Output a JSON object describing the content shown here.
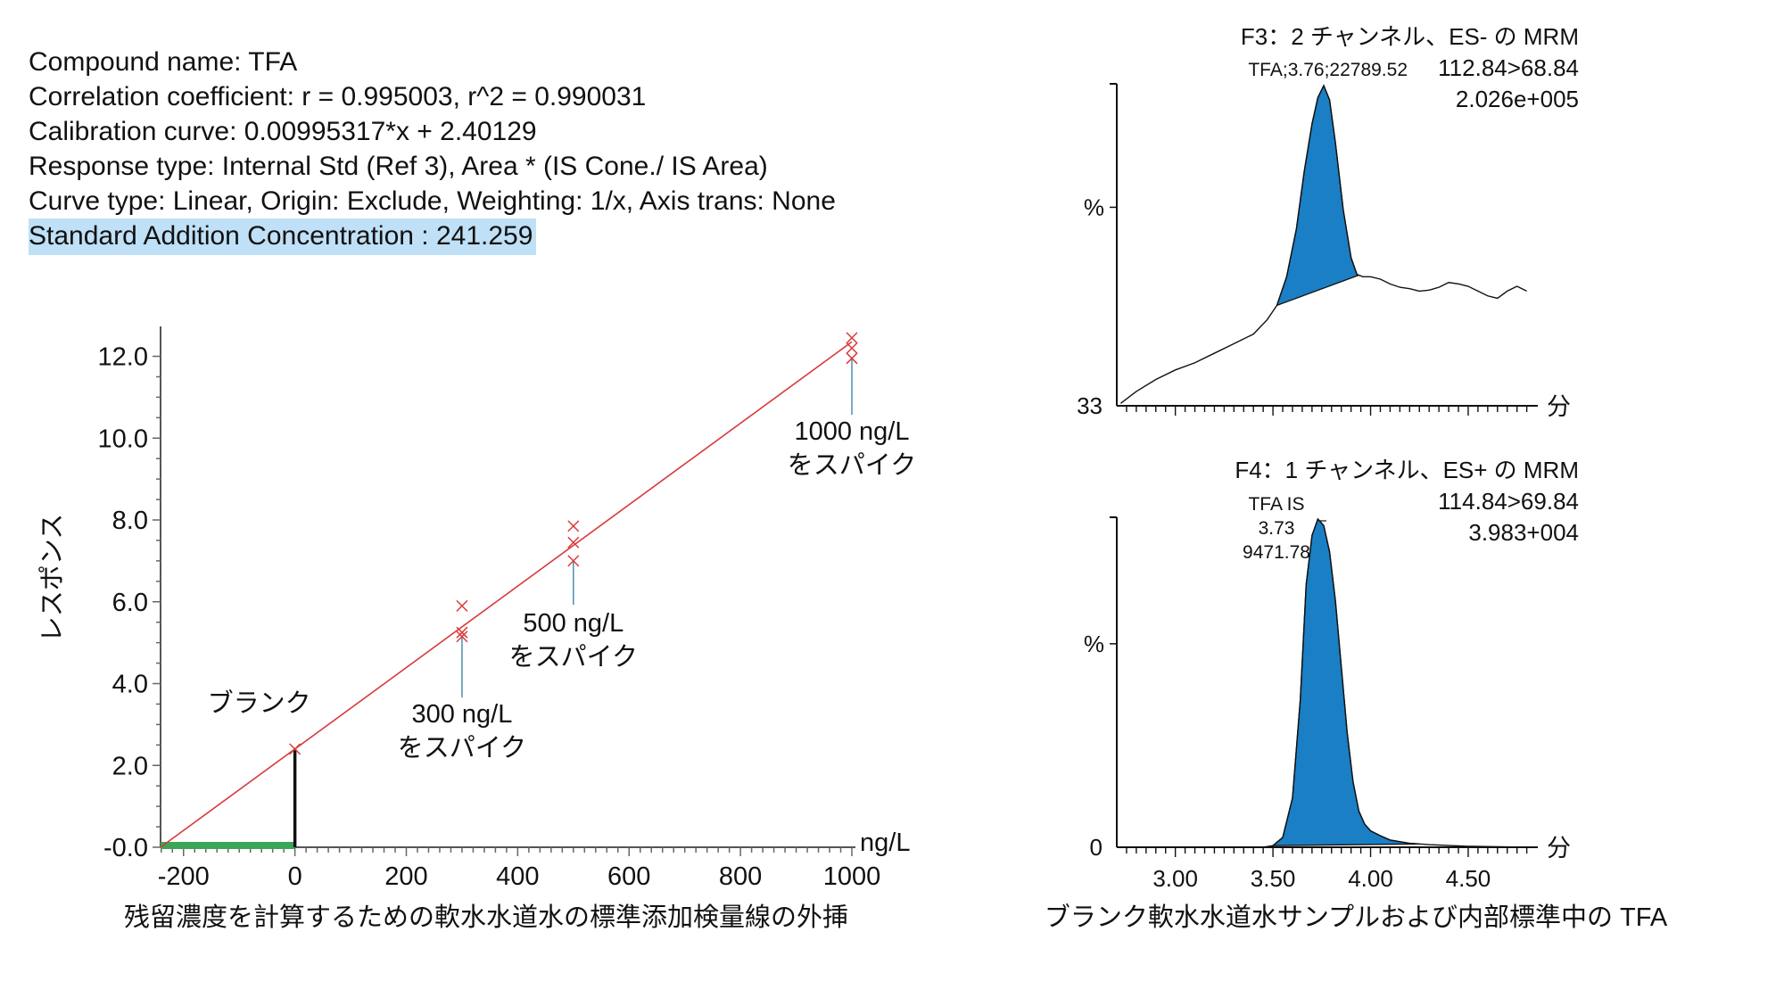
{
  "info": {
    "compound": "Compound name: TFA",
    "correlation": "Correlation coefficient: r = 0.995003, r^2 = 0.990031",
    "calibration": "Calibration curve: 0.00995317*x + 2.40129",
    "response_type": "Response type: Internal Std (Ref 3), Area * (IS Cone./ IS Area)",
    "curve_type": "Curve type: Linear, Origin: Exclude, Weighting: 1/x, Axis trans: None",
    "std_addition": "Standard Addition Concentration : 241.259"
  },
  "colors": {
    "fit_line": "#d93a3a",
    "points": "#d93a3a",
    "extrapolation": "#3aa657",
    "peak_fill": "#1a7fc4",
    "spike_line": "#4a8fb0"
  },
  "chart_data": [
    {
      "type": "scatter",
      "title": "残留濃度を計算するための軟水水道水の標準添加検量線の外挿",
      "xlabel": "ng/L",
      "ylabel": "レスポンス",
      "xlim": [
        -241.259,
        1000
      ],
      "ylim": [
        0,
        12.6
      ],
      "x_ticks": [
        "-200",
        "0",
        "200",
        "400",
        "600",
        "800",
        "1000"
      ],
      "y_ticks": [
        "-0.0",
        "2.0",
        "4.0",
        "6.0",
        "8.0",
        "10.0",
        "12.0"
      ],
      "fit": {
        "slope": 0.00995317,
        "intercept": 2.40129
      },
      "points": [
        {
          "x": 0,
          "y": 2.4
        },
        {
          "x": 300,
          "y": 5.9
        },
        {
          "x": 300,
          "y": 5.25
        },
        {
          "x": 300,
          "y": 5.15
        },
        {
          "x": 500,
          "y": 7.85
        },
        {
          "x": 500,
          "y": 7.45
        },
        {
          "x": 500,
          "y": 7.0
        },
        {
          "x": 1000,
          "y": 12.45
        },
        {
          "x": 1000,
          "y": 12.2
        },
        {
          "x": 1000,
          "y": 11.95
        }
      ],
      "annotations": [
        {
          "text": "ブランク",
          "x": 0
        },
        {
          "text": "300 ng/L",
          "text2": "をスパイク",
          "x": 300
        },
        {
          "text": "500 ng/L",
          "text2": "をスパイク",
          "x": 500
        },
        {
          "text": "1000 ng/L",
          "text2": "をスパイク",
          "x": 1000
        }
      ]
    },
    {
      "type": "line",
      "title": "ブランク軟水水道水サンプルおよび内部標準中の TFA",
      "xlim": [
        2.7,
        4.82
      ],
      "x_ticks": [
        "3.00",
        "3.50",
        "4.00",
        "4.50"
      ],
      "x_unit": "分",
      "panels": [
        {
          "header": "F3：2 チャンネル、ES- の MRM",
          "peak_label": "TFA;3.76;22789.52",
          "transition": "112.84>68.84",
          "intensity": "2.026e+005",
          "ylabel": "%",
          "y_min_label": "33",
          "y_range": [
            33,
            100
          ],
          "trace": [
            [
              2.72,
              33.5
            ],
            [
              2.8,
              36
            ],
            [
              2.9,
              38.5
            ],
            [
              3.0,
              40.5
            ],
            [
              3.1,
              42
            ],
            [
              3.2,
              44
            ],
            [
              3.3,
              46
            ],
            [
              3.4,
              48
            ],
            [
              3.47,
              51
            ],
            [
              3.52,
              54
            ],
            [
              3.57,
              60
            ],
            [
              3.62,
              70
            ],
            [
              3.66,
              82
            ],
            [
              3.7,
              92
            ],
            [
              3.73,
              97.5
            ],
            [
              3.76,
              100
            ],
            [
              3.79,
              97
            ],
            [
              3.82,
              88
            ],
            [
              3.86,
              74
            ],
            [
              3.9,
              64
            ],
            [
              3.93,
              60.5
            ],
            [
              3.96,
              60
            ],
            [
              4.0,
              60
            ],
            [
              4.05,
              59.5
            ],
            [
              4.1,
              58.5
            ],
            [
              4.15,
              57.8
            ],
            [
              4.2,
              57.5
            ],
            [
              4.25,
              57
            ],
            [
              4.3,
              57.2
            ],
            [
              4.35,
              57.8
            ],
            [
              4.4,
              58.8
            ],
            [
              4.45,
              58.5
            ],
            [
              4.5,
              58
            ],
            [
              4.55,
              57
            ],
            [
              4.6,
              56
            ],
            [
              4.65,
              55.5
            ],
            [
              4.7,
              57
            ],
            [
              4.75,
              58
            ],
            [
              4.8,
              57
            ]
          ],
          "integration": [
            3.52,
            3.94
          ]
        },
        {
          "header": "F4：1 チャンネル、ES+ の MRM",
          "peak_label": [
            "TFA IS",
            "3.73",
            "9471.78"
          ],
          "transition": "114.84>69.84",
          "intensity": "3.983+004",
          "ylabel": "%",
          "y_min_label": "0",
          "y_range": [
            0,
            100
          ],
          "trace": [
            [
              2.72,
              0
            ],
            [
              3.3,
              0
            ],
            [
              3.45,
              0
            ],
            [
              3.5,
              0.5
            ],
            [
              3.55,
              3
            ],
            [
              3.6,
              15
            ],
            [
              3.64,
              45
            ],
            [
              3.67,
              80
            ],
            [
              3.7,
              95
            ],
            [
              3.73,
              100
            ],
            [
              3.76,
              98
            ],
            [
              3.79,
              90
            ],
            [
              3.82,
              75
            ],
            [
              3.85,
              55
            ],
            [
              3.88,
              35
            ],
            [
              3.91,
              20
            ],
            [
              3.94,
              11
            ],
            [
              3.97,
              7
            ],
            [
              4.0,
              5
            ],
            [
              4.05,
              3.5
            ],
            [
              4.1,
              2.2
            ],
            [
              4.2,
              1.2
            ],
            [
              4.3,
              0.8
            ],
            [
              4.5,
              0.3
            ],
            [
              4.8,
              0
            ]
          ],
          "integration": [
            3.5,
            4.25
          ]
        }
      ]
    }
  ]
}
